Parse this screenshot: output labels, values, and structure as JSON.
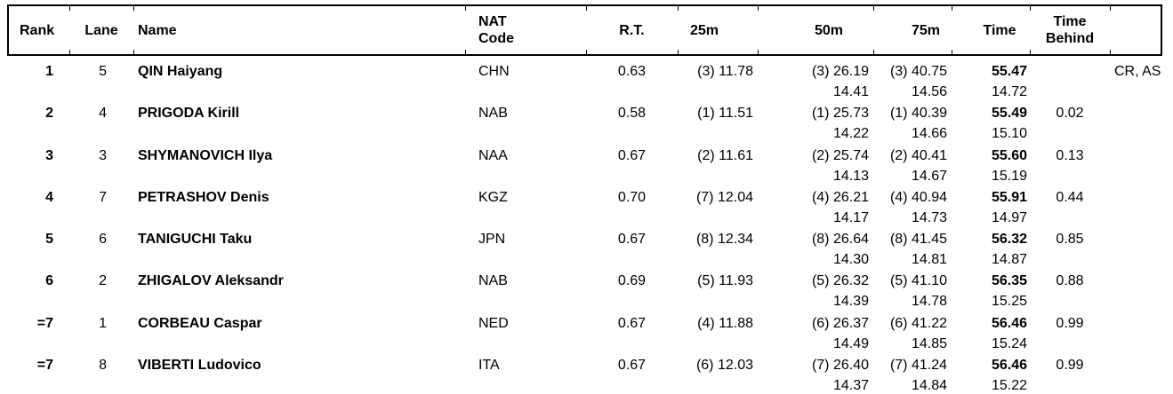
{
  "table": {
    "header": {
      "rank": "Rank",
      "lane": "Lane",
      "name": "Name",
      "nat_line1": "NAT",
      "nat_line2": "Code",
      "rt": "R.T.",
      "m25": "25m",
      "m50": "50m",
      "m75": "75m",
      "time": "Time",
      "behind_line1": "Time",
      "behind_line2": "Behind"
    },
    "rows": [
      {
        "rank": "1",
        "lane": "5",
        "name": "QIN Haiyang",
        "nat": "CHN",
        "rt": "0.63",
        "m25": "(3) 11.78",
        "m50": "(3) 26.19",
        "m50_split": "14.41",
        "m75": "(3) 40.75",
        "m75_split": "14.56",
        "time": "55.47",
        "time_split": "14.72",
        "behind": "",
        "records": "CR, AS"
      },
      {
        "rank": "2",
        "lane": "4",
        "name": "PRIGODA Kirill",
        "nat": "NAB",
        "rt": "0.58",
        "m25": "(1) 11.51",
        "m50": "(1) 25.73",
        "m50_split": "14.22",
        "m75": "(1) 40.39",
        "m75_split": "14.66",
        "time": "55.49",
        "time_split": "15.10",
        "behind": "0.02",
        "records": ""
      },
      {
        "rank": "3",
        "lane": "3",
        "name": "SHYMANOVICH Ilya",
        "nat": "NAA",
        "rt": "0.67",
        "m25": "(2) 11.61",
        "m50": "(2) 25.74",
        "m50_split": "14.13",
        "m75": "(2) 40.41",
        "m75_split": "14.67",
        "time": "55.60",
        "time_split": "15.19",
        "behind": "0.13",
        "records": ""
      },
      {
        "rank": "4",
        "lane": "7",
        "name": "PETRASHOV Denis",
        "nat": "KGZ",
        "rt": "0.70",
        "m25": "(7) 12.04",
        "m50": "(4) 26.21",
        "m50_split": "14.17",
        "m75": "(4) 40.94",
        "m75_split": "14.73",
        "time": "55.91",
        "time_split": "14.97",
        "behind": "0.44",
        "records": ""
      },
      {
        "rank": "5",
        "lane": "6",
        "name": "TANIGUCHI Taku",
        "nat": "JPN",
        "rt": "0.67",
        "m25": "(8) 12.34",
        "m50": "(8) 26.64",
        "m50_split": "14.30",
        "m75": "(8) 41.45",
        "m75_split": "14.81",
        "time": "56.32",
        "time_split": "14.87",
        "behind": "0.85",
        "records": ""
      },
      {
        "rank": "6",
        "lane": "2",
        "name": "ZHIGALOV Aleksandr",
        "nat": "NAB",
        "rt": "0.69",
        "m25": "(5) 11.93",
        "m50": "(5) 26.32",
        "m50_split": "14.39",
        "m75": "(5) 41.10",
        "m75_split": "14.78",
        "time": "56.35",
        "time_split": "15.25",
        "behind": "0.88",
        "records": ""
      },
      {
        "rank": "=7",
        "lane": "1",
        "name": "CORBEAU Caspar",
        "nat": "NED",
        "rt": "0.67",
        "m25": "(4) 11.88",
        "m50": "(6) 26.37",
        "m50_split": "14.49",
        "m75": "(6) 41.22",
        "m75_split": "14.85",
        "time": "56.46",
        "time_split": "15.24",
        "behind": "0.99",
        "records": ""
      },
      {
        "rank": "=7",
        "lane": "8",
        "name": "VIBERTI Ludovico",
        "nat": "ITA",
        "rt": "0.67",
        "m25": "(6) 12.03",
        "m50": "(7) 26.40",
        "m50_split": "14.37",
        "m75": "(7) 41.24",
        "m75_split": "14.84",
        "time": "56.46",
        "time_split": "15.22",
        "behind": "0.99",
        "records": ""
      }
    ]
  }
}
